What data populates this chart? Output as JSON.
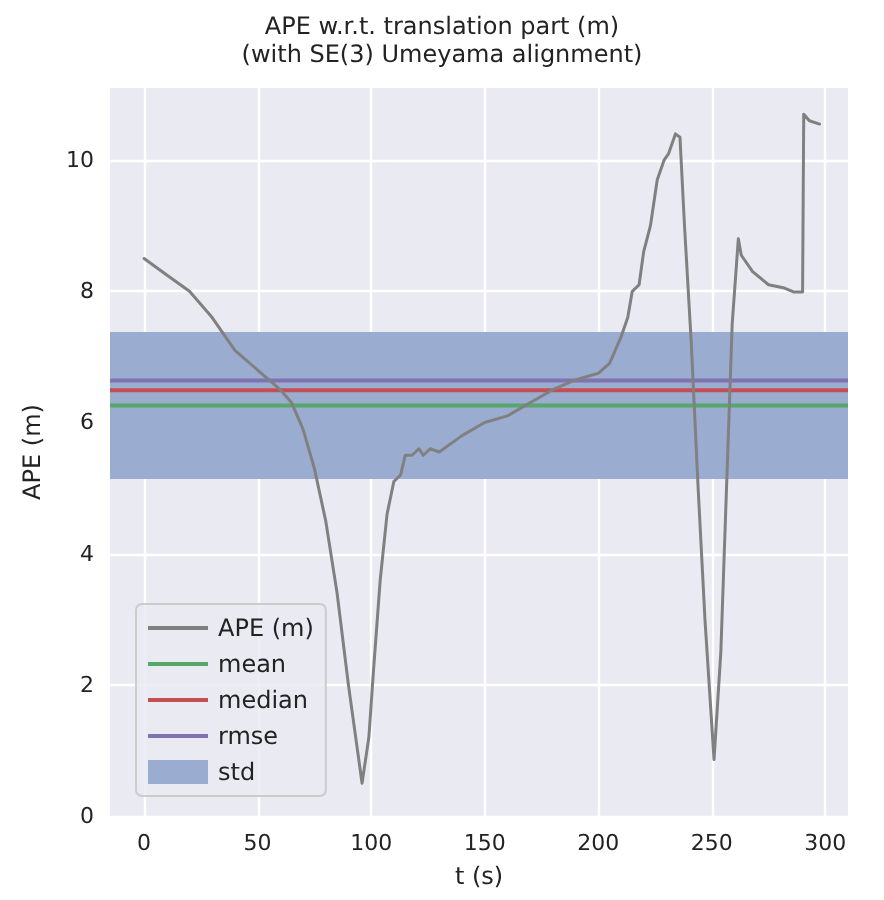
{
  "chart_data": {
    "type": "line",
    "title": "APE w.r.t. translation part (m)",
    "subtitle": "(with SE(3) Umeyama alignment)",
    "xlabel": "t (s)",
    "ylabel": "APE (m)",
    "xlim": [
      -15,
      310
    ],
    "ylim": [
      0,
      11.1
    ],
    "xticks": [
      0,
      50,
      100,
      150,
      200,
      250,
      300
    ],
    "yticks": [
      0,
      2,
      4,
      6,
      8,
      10
    ],
    "grid": true,
    "legend": "bottom left",
    "marker": "none",
    "line_style": "solid",
    "series": [
      {
        "name": "APE (m)",
        "color": "#808080",
        "x": [
          0,
          10,
          20,
          30,
          40,
          50,
          60,
          65,
          70,
          75,
          80,
          85,
          90,
          96,
          99,
          101,
          104,
          107,
          110,
          113,
          115,
          118,
          121,
          123,
          126,
          130,
          140,
          150,
          160,
          170,
          180,
          190,
          200,
          205,
          210,
          213,
          215,
          218,
          220,
          223,
          226,
          229,
          231,
          234,
          236,
          238,
          241,
          244,
          247,
          251,
          254,
          257,
          259,
          261.7,
          263,
          268,
          275,
          282,
          286,
          290,
          290.5,
          293,
          297.5
        ],
        "values": [
          8.5,
          8.25,
          8.0,
          7.6,
          7.1,
          6.8,
          6.5,
          6.3,
          5.9,
          5.3,
          4.5,
          3.4,
          2.0,
          0.5,
          1.2,
          2.2,
          3.6,
          4.6,
          5.1,
          5.2,
          5.5,
          5.5,
          5.6,
          5.5,
          5.6,
          5.55,
          5.8,
          6.0,
          6.1,
          6.3,
          6.5,
          6.65,
          6.75,
          6.9,
          7.3,
          7.6,
          8.0,
          8.1,
          8.6,
          9.0,
          9.7,
          10.0,
          10.1,
          10.4,
          10.35,
          9.0,
          7.2,
          5.0,
          3.0,
          0.86,
          2.5,
          5.5,
          7.5,
          8.8,
          8.55,
          8.3,
          8.1,
          8.05,
          7.99,
          7.99,
          10.7,
          10.6,
          10.55
        ]
      }
    ],
    "ref_lines": [
      {
        "axis": "y",
        "value": 6.26,
        "label": "mean",
        "color": "#55a868"
      },
      {
        "axis": "y",
        "value": 6.49,
        "label": "median",
        "color": "#c44e52"
      },
      {
        "axis": "y",
        "value": 6.64,
        "label": "rmse",
        "color": "#8172b2"
      }
    ],
    "bands": [
      {
        "axis": "y",
        "from": 5.14,
        "to": 7.38,
        "label": "std",
        "color": "#9aadd0"
      }
    ]
  }
}
